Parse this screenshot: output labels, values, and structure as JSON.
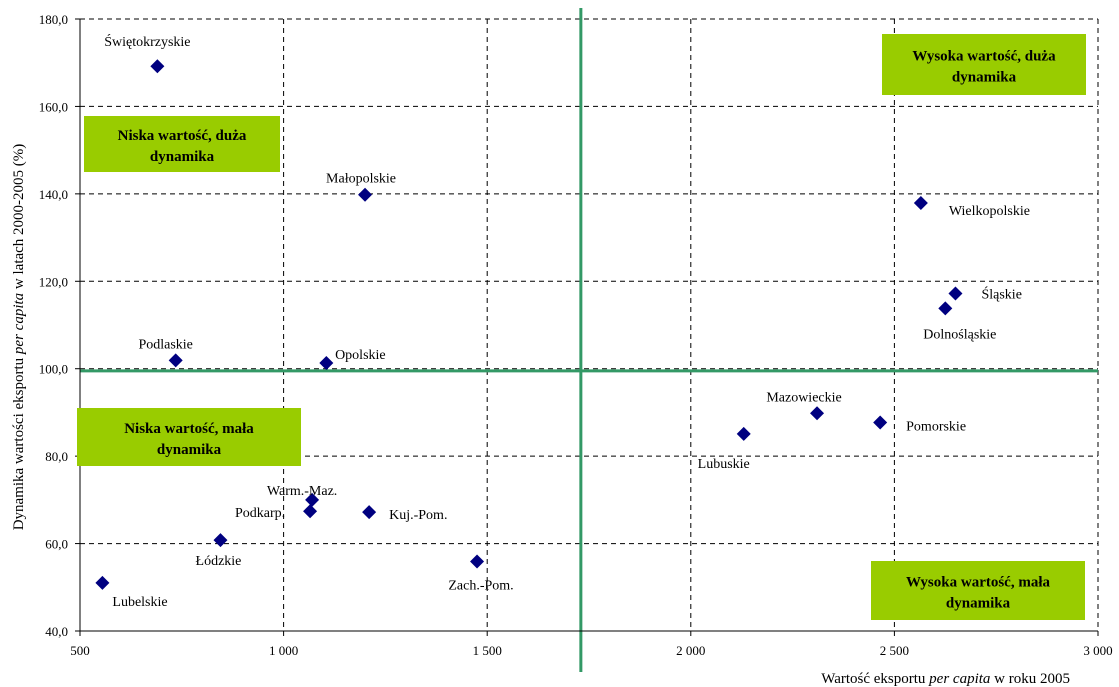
{
  "chart_data": {
    "type": "scatter",
    "title": "",
    "xlabel": {
      "before": "Wartość eksportu ",
      "italic": "per capita",
      "after": "  w roku 2005"
    },
    "ylabel": {
      "before": "Dynamika wartości eksportu  ",
      "italic": "per capita",
      "after": "  w latach 2000-2005 (%)"
    },
    "xlim": [
      500,
      3000
    ],
    "ylim": [
      40,
      180
    ],
    "xticks": [
      {
        "value": 500,
        "label": "500"
      },
      {
        "value": 1000,
        "label": "1 000"
      },
      {
        "value": 1500,
        "label": "1 500"
      },
      {
        "value": 2000,
        "label": "2 000"
      },
      {
        "value": 2500,
        "label": "2 500"
      },
      {
        "value": 3000,
        "label": "3 000"
      }
    ],
    "yticks": [
      {
        "value": 40,
        "label": "40,0"
      },
      {
        "value": 60,
        "label": "60,0"
      },
      {
        "value": 80,
        "label": "80,0"
      },
      {
        "value": 100,
        "label": "100,0"
      },
      {
        "value": 120,
        "label": "120,0"
      },
      {
        "value": 140,
        "label": "140,0"
      },
      {
        "value": 160,
        "label": "160,0"
      },
      {
        "value": 180,
        "label": "180,0"
      }
    ],
    "grid": true,
    "marker_color": "#000080",
    "divider_color": "#339966",
    "quadrant_color": "#99cc00",
    "divider_x": 1730,
    "divider_y": 99.5,
    "points": [
      {
        "label": "Świętokrzyskie",
        "x": 690,
        "y": 169.2
      },
      {
        "label": "Małopolskie",
        "x": 1200,
        "y": 139.8
      },
      {
        "label": "Podlaskie",
        "x": 735,
        "y": 101.9
      },
      {
        "label": "Opolskie",
        "x": 1105,
        "y": 101.3
      },
      {
        "label": "Warm.-Maz.",
        "x": 1070,
        "y": 70.0
      },
      {
        "label": "Podkarp.",
        "x": 1065,
        "y": 67.4
      },
      {
        "label": "Kuj.-Pom.",
        "x": 1210,
        "y": 67.2
      },
      {
        "label": "Łódzkie",
        "x": 845,
        "y": 60.8
      },
      {
        "label": "Lubelskie",
        "x": 555,
        "y": 51.0
      },
      {
        "label": "Zach.-Pom.",
        "x": 1475,
        "y": 55.9
      },
      {
        "label": "Lubuskie",
        "x": 2130,
        "y": 85.1
      },
      {
        "label": "Mazowieckie",
        "x": 2310,
        "y": 89.8
      },
      {
        "label": "Pomorskie",
        "x": 2465,
        "y": 87.7
      },
      {
        "label": "Wielkopolskie",
        "x": 2565,
        "y": 137.9
      },
      {
        "label": "Śląskie",
        "x": 2650,
        "y": 117.2
      },
      {
        "label": "Dolnośląskie",
        "x": 2625,
        "y": 113.8
      }
    ],
    "quadrants": [
      {
        "line1": "Wysoka wartość, duża",
        "line2": "dynamika"
      },
      {
        "line1": "Niska wartość, duża",
        "line2": "dynamika"
      },
      {
        "line1": "Niska wartość, mała",
        "line2": "dynamika"
      },
      {
        "line1": "Wysoka wartość, mała",
        "line2": "dynamika"
      }
    ]
  }
}
